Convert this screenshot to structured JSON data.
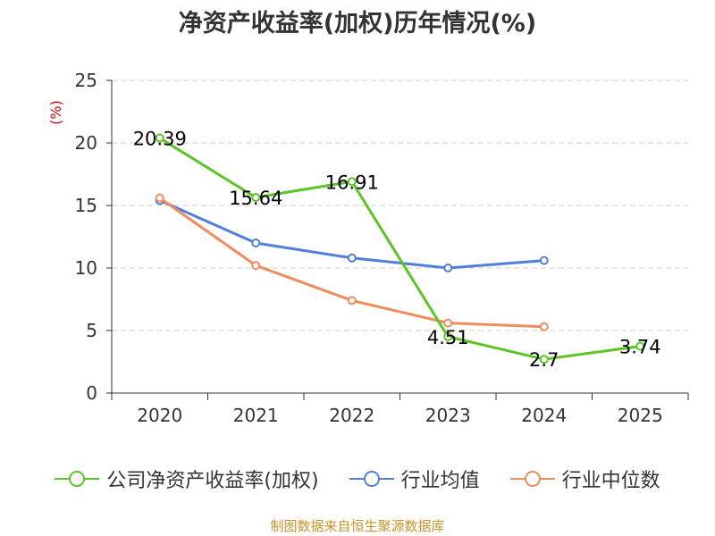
{
  "chart_data": {
    "type": "line",
    "title": "净资产收益率(加权)历年情况(%)",
    "ylabel": "(%)",
    "xlabel": "",
    "ylim": [
      0,
      25
    ],
    "yticks": [
      0,
      5,
      10,
      15,
      20,
      25
    ],
    "categories": [
      "2020",
      "2021",
      "2022",
      "2023",
      "2024",
      "2025"
    ],
    "series": [
      {
        "name": "公司净资产收益率(加权)",
        "color": "#5cc424",
        "values": [
          20.39,
          15.64,
          16.91,
          4.51,
          2.7,
          3.74
        ],
        "show_labels": true
      },
      {
        "name": "行业均值",
        "color": "#4f7fdb",
        "values": [
          15.4,
          12.0,
          10.8,
          10.0,
          10.6,
          null
        ],
        "show_labels": false
      },
      {
        "name": "行业中位数",
        "color": "#f28b5c",
        "values": [
          15.6,
          10.2,
          7.4,
          5.6,
          5.3,
          null
        ],
        "show_labels": false
      }
    ],
    "grid": true,
    "legend_position": "bottom"
  },
  "footer": {
    "source": "制图数据来自恒生聚源数据库"
  }
}
